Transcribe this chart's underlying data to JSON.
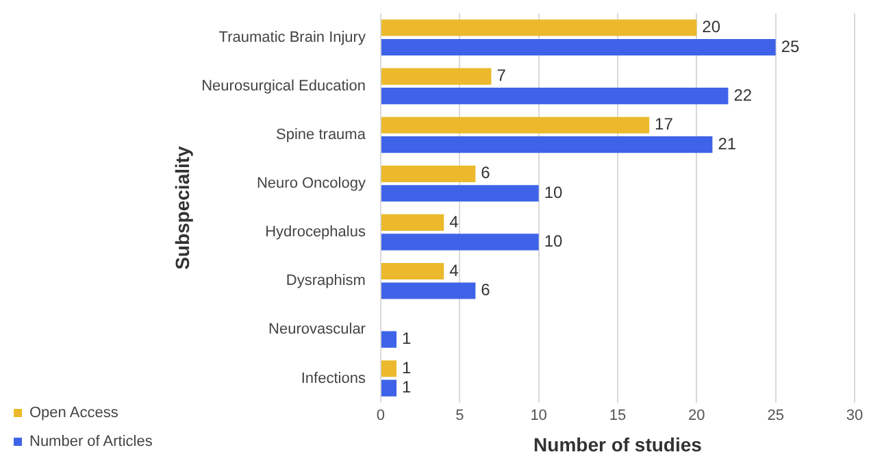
{
  "chart_data": {
    "type": "bar",
    "orientation": "horizontal",
    "xlabel": "Number of studies",
    "ylabel": "Subspeciality",
    "categories": [
      "Traumatic Brain Injury",
      "Neurosurgical Education",
      "Spine trauma",
      "Neuro Oncology",
      "Hydrocephalus",
      "Dysraphism",
      "Neurovascular",
      "Infections"
    ],
    "series": [
      {
        "name": "Open Access",
        "color": "#ebb92b",
        "values": [
          20,
          7,
          17,
          6,
          4,
          4,
          null,
          1
        ]
      },
      {
        "name": "Number of Articles",
        "color": "#3e63e8",
        "values": [
          25,
          22,
          21,
          10,
          10,
          6,
          1,
          1
        ]
      }
    ],
    "xlim": [
      0,
      30
    ],
    "xticks": [
      0,
      5,
      10,
      15,
      20,
      25,
      30
    ],
    "grid": "x",
    "legend": "bottom left",
    "data_labels": true
  }
}
